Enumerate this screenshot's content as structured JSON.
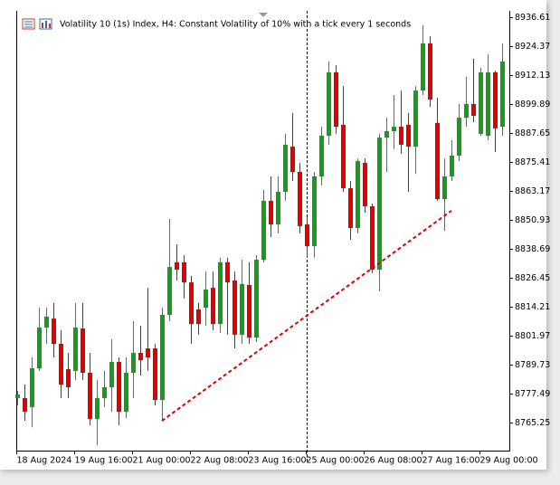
{
  "chart_data": {
    "type": "candlestick",
    "title": "Volatility 10 (1s) Index, H4:  Constant Volatility of 10% with a tick every 1 seconds",
    "up_color": "#1a9a1a",
    "down_color": "#e00000",
    "categories": [
      "18 Aug 2024",
      null,
      null,
      null,
      null,
      null,
      null,
      null,
      "19 Aug 16:00",
      null,
      null,
      null,
      null,
      null,
      null,
      null,
      "21 Aug 00:00",
      null,
      null,
      null,
      null,
      null,
      null,
      null,
      "22 Aug 08:00",
      null,
      null,
      null,
      null,
      null,
      null,
      null,
      "23 Aug 16:00",
      null,
      null,
      null,
      null,
      null,
      null,
      null,
      "25 Aug 00:00",
      null,
      null,
      null,
      null,
      null,
      null,
      null,
      "26 Aug 08:00",
      null,
      null,
      null,
      null,
      null,
      null,
      null,
      "27 Aug 16:00",
      null,
      null,
      null,
      null,
      null,
      null,
      null,
      "29 Aug 00:00",
      null,
      null,
      null
    ],
    "open": [
      8775.6,
      8775.6,
      8771.8,
      8788.2,
      8805.4,
      8809.2,
      8798.5,
      8787.8,
      8787.1,
      8805.0,
      8786.3,
      8766.8,
      8775.6,
      8780.2,
      8790.9,
      8769.8,
      8786.3,
      8794.7,
      8796.6,
      8796.6,
      8774.8,
      8810.8,
      8833.0,
      8833.0,
      8824.5,
      8813.1,
      8813.8,
      8822.2,
      8806.9,
      8833.0,
      8825.3,
      8802.4,
      8823.4,
      8801.2,
      8834.1,
      8859.0,
      8849.0,
      8862.8,
      8881.9,
      8871.2,
      8849.0,
      8839.8,
      8869.3,
      8886.5,
      8913.3,
      8891.1,
      8864.3,
      8847.5,
      8875.0,
      8856.7,
      8829.9,
      8885.7,
      8888.4,
      8890.3,
      8891.1,
      8881.9,
      8905.6,
      8925.5,
      8891.9,
      8859.7,
      8869.3,
      8878.1,
      8894.1,
      8899.9,
      8887.3,
      8886.5,
      8913.3,
      8890.3
    ],
    "high": [
      8778.6,
      8781.3,
      8792.8,
      8813.8,
      8813.8,
      8815.8,
      8804.3,
      8794.7,
      8815.8,
      8815.8,
      8794.7,
      8783.2,
      8787.1,
      8800.5,
      8792.8,
      8792.8,
      8808.1,
      8806.2,
      8822.2,
      8798.5,
      8813.8,
      8851.3,
      8840.6,
      8836.0,
      8827.2,
      8815.8,
      8829.1,
      8829.1,
      8834.9,
      8834.9,
      8829.1,
      8834.1,
      8833.0,
      8836.0,
      8863.6,
      8869.3,
      8869.3,
      8887.3,
      8896.1,
      8875.0,
      8852.1,
      8871.2,
      8890.3,
      8917.9,
      8916.3,
      8907.5,
      8867.4,
      8876.9,
      8876.9,
      8857.8,
      8887.3,
      8894.1,
      8903.7,
      8905.6,
      8896.1,
      8907.5,
      8933.2,
      8928.6,
      8902.6,
      8876.9,
      8884.6,
      8899.9,
      8911.4,
      8919.0,
      8915.2,
      8920.9,
      8914.0,
      8925.5
    ],
    "low": [
      8772.5,
      8766.0,
      8763.3,
      8787.1,
      8798.5,
      8792.8,
      8775.6,
      8775.6,
      8783.2,
      8783.2,
      8764.1,
      8755.7,
      8771.8,
      8769.8,
      8764.1,
      8767.2,
      8775.6,
      8785.1,
      8787.1,
      8772.5,
      8766.0,
      8808.1,
      8825.3,
      8817.7,
      8798.5,
      8802.4,
      8806.2,
      8804.3,
      8803.1,
      8802.4,
      8796.6,
      8798.5,
      8798.5,
      8799.3,
      8833.0,
      8843.7,
      8845.2,
      8859.0,
      8867.4,
      8845.2,
      8834.9,
      8834.9,
      8865.5,
      8882.7,
      8887.3,
      8862.8,
      8842.5,
      8845.2,
      8854.0,
      8828.4,
      8820.7,
      8871.2,
      8880.8,
      8878.8,
      8862.8,
      8870.4,
      8903.7,
      8898.7,
      8859.0,
      8846.3,
      8867.4,
      8875.8,
      8890.3,
      8892.2,
      8886.5,
      8884.6,
      8879.6,
      8886.5
    ],
    "close": [
      8777.1,
      8769.8,
      8788.2,
      8805.4,
      8810.0,
      8798.5,
      8781.3,
      8780.2,
      8805.4,
      8786.3,
      8766.8,
      8775.6,
      8780.2,
      8790.9,
      8769.8,
      8786.3,
      8794.7,
      8791.6,
      8792.8,
      8774.8,
      8810.8,
      8831.0,
      8829.9,
      8824.5,
      8806.9,
      8806.9,
      8821.5,
      8806.9,
      8833.0,
      8824.5,
      8802.4,
      8823.8,
      8801.2,
      8834.1,
      8859.0,
      8849.0,
      8862.8,
      8882.7,
      8871.2,
      8848.3,
      8839.8,
      8869.3,
      8886.5,
      8913.3,
      8890.3,
      8864.3,
      8847.5,
      8875.8,
      8856.7,
      8829.9,
      8885.7,
      8888.4,
      8890.3,
      8882.7,
      8881.9,
      8905.6,
      8925.5,
      8901.8,
      8859.7,
      8869.3,
      8878.1,
      8894.1,
      8899.9,
      8894.9,
      8913.3,
      8913.3,
      8889.6,
      8917.9
    ],
    "ylim": [
      8753.39,
      8939.29
    ],
    "yticks": [
      8936.61,
      8924.37,
      8912.13,
      8899.89,
      8887.65,
      8875.41,
      8863.17,
      8850.93,
      8838.69,
      8826.45,
      8814.21,
      8801.97,
      8789.73,
      8777.49,
      8765.25
    ],
    "trendline": {
      "color": "#e00000",
      "start": {
        "x": 20,
        "y": 8766.0
      },
      "end": {
        "x": 60,
        "y": 8854.8
      }
    },
    "grid": false
  }
}
